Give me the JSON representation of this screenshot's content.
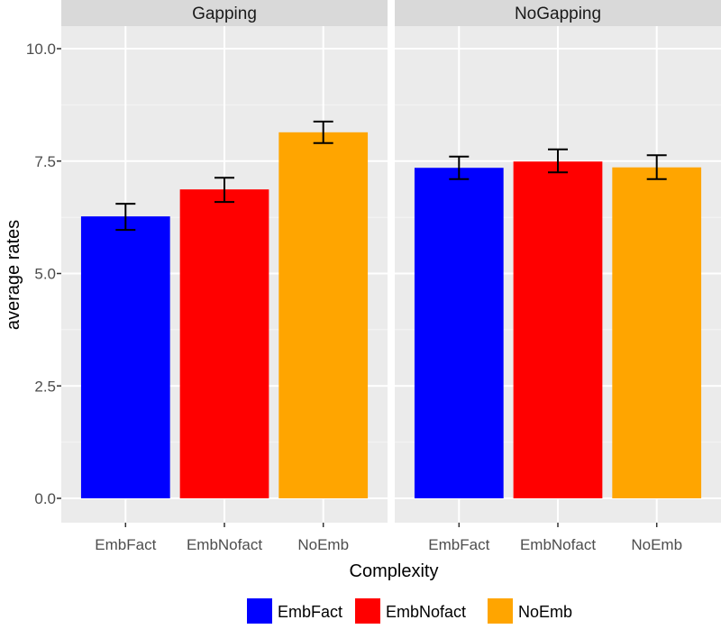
{
  "chart_data": {
    "type": "bar",
    "title": "",
    "xlabel": "Complexity",
    "ylabel": "average rates",
    "ylim": [
      0,
      10
    ],
    "yticks": [
      "0.0",
      "2.5",
      "5.0",
      "7.5",
      "10.0"
    ],
    "grid": true,
    "legend_position": "bottom",
    "categories": [
      "EmbFact",
      "EmbNofact",
      "NoEmb"
    ],
    "colors": {
      "EmbFact": "#0000FF",
      "EmbNofact": "#FF0000",
      "NoEmb": "#FFA500"
    },
    "legend": [
      "EmbFact",
      "EmbNofact",
      "NoEmb"
    ],
    "panels": [
      {
        "name": "Gapping",
        "values": [
          6.27,
          6.87,
          8.14
        ],
        "error_low": [
          5.97,
          6.59,
          7.9
        ],
        "error_high": [
          6.55,
          7.13,
          8.38
        ]
      },
      {
        "name": "NoGapping",
        "values": [
          7.35,
          7.49,
          7.36
        ],
        "error_low": [
          7.1,
          7.25,
          7.1
        ],
        "error_high": [
          7.6,
          7.76,
          7.63
        ]
      }
    ]
  }
}
